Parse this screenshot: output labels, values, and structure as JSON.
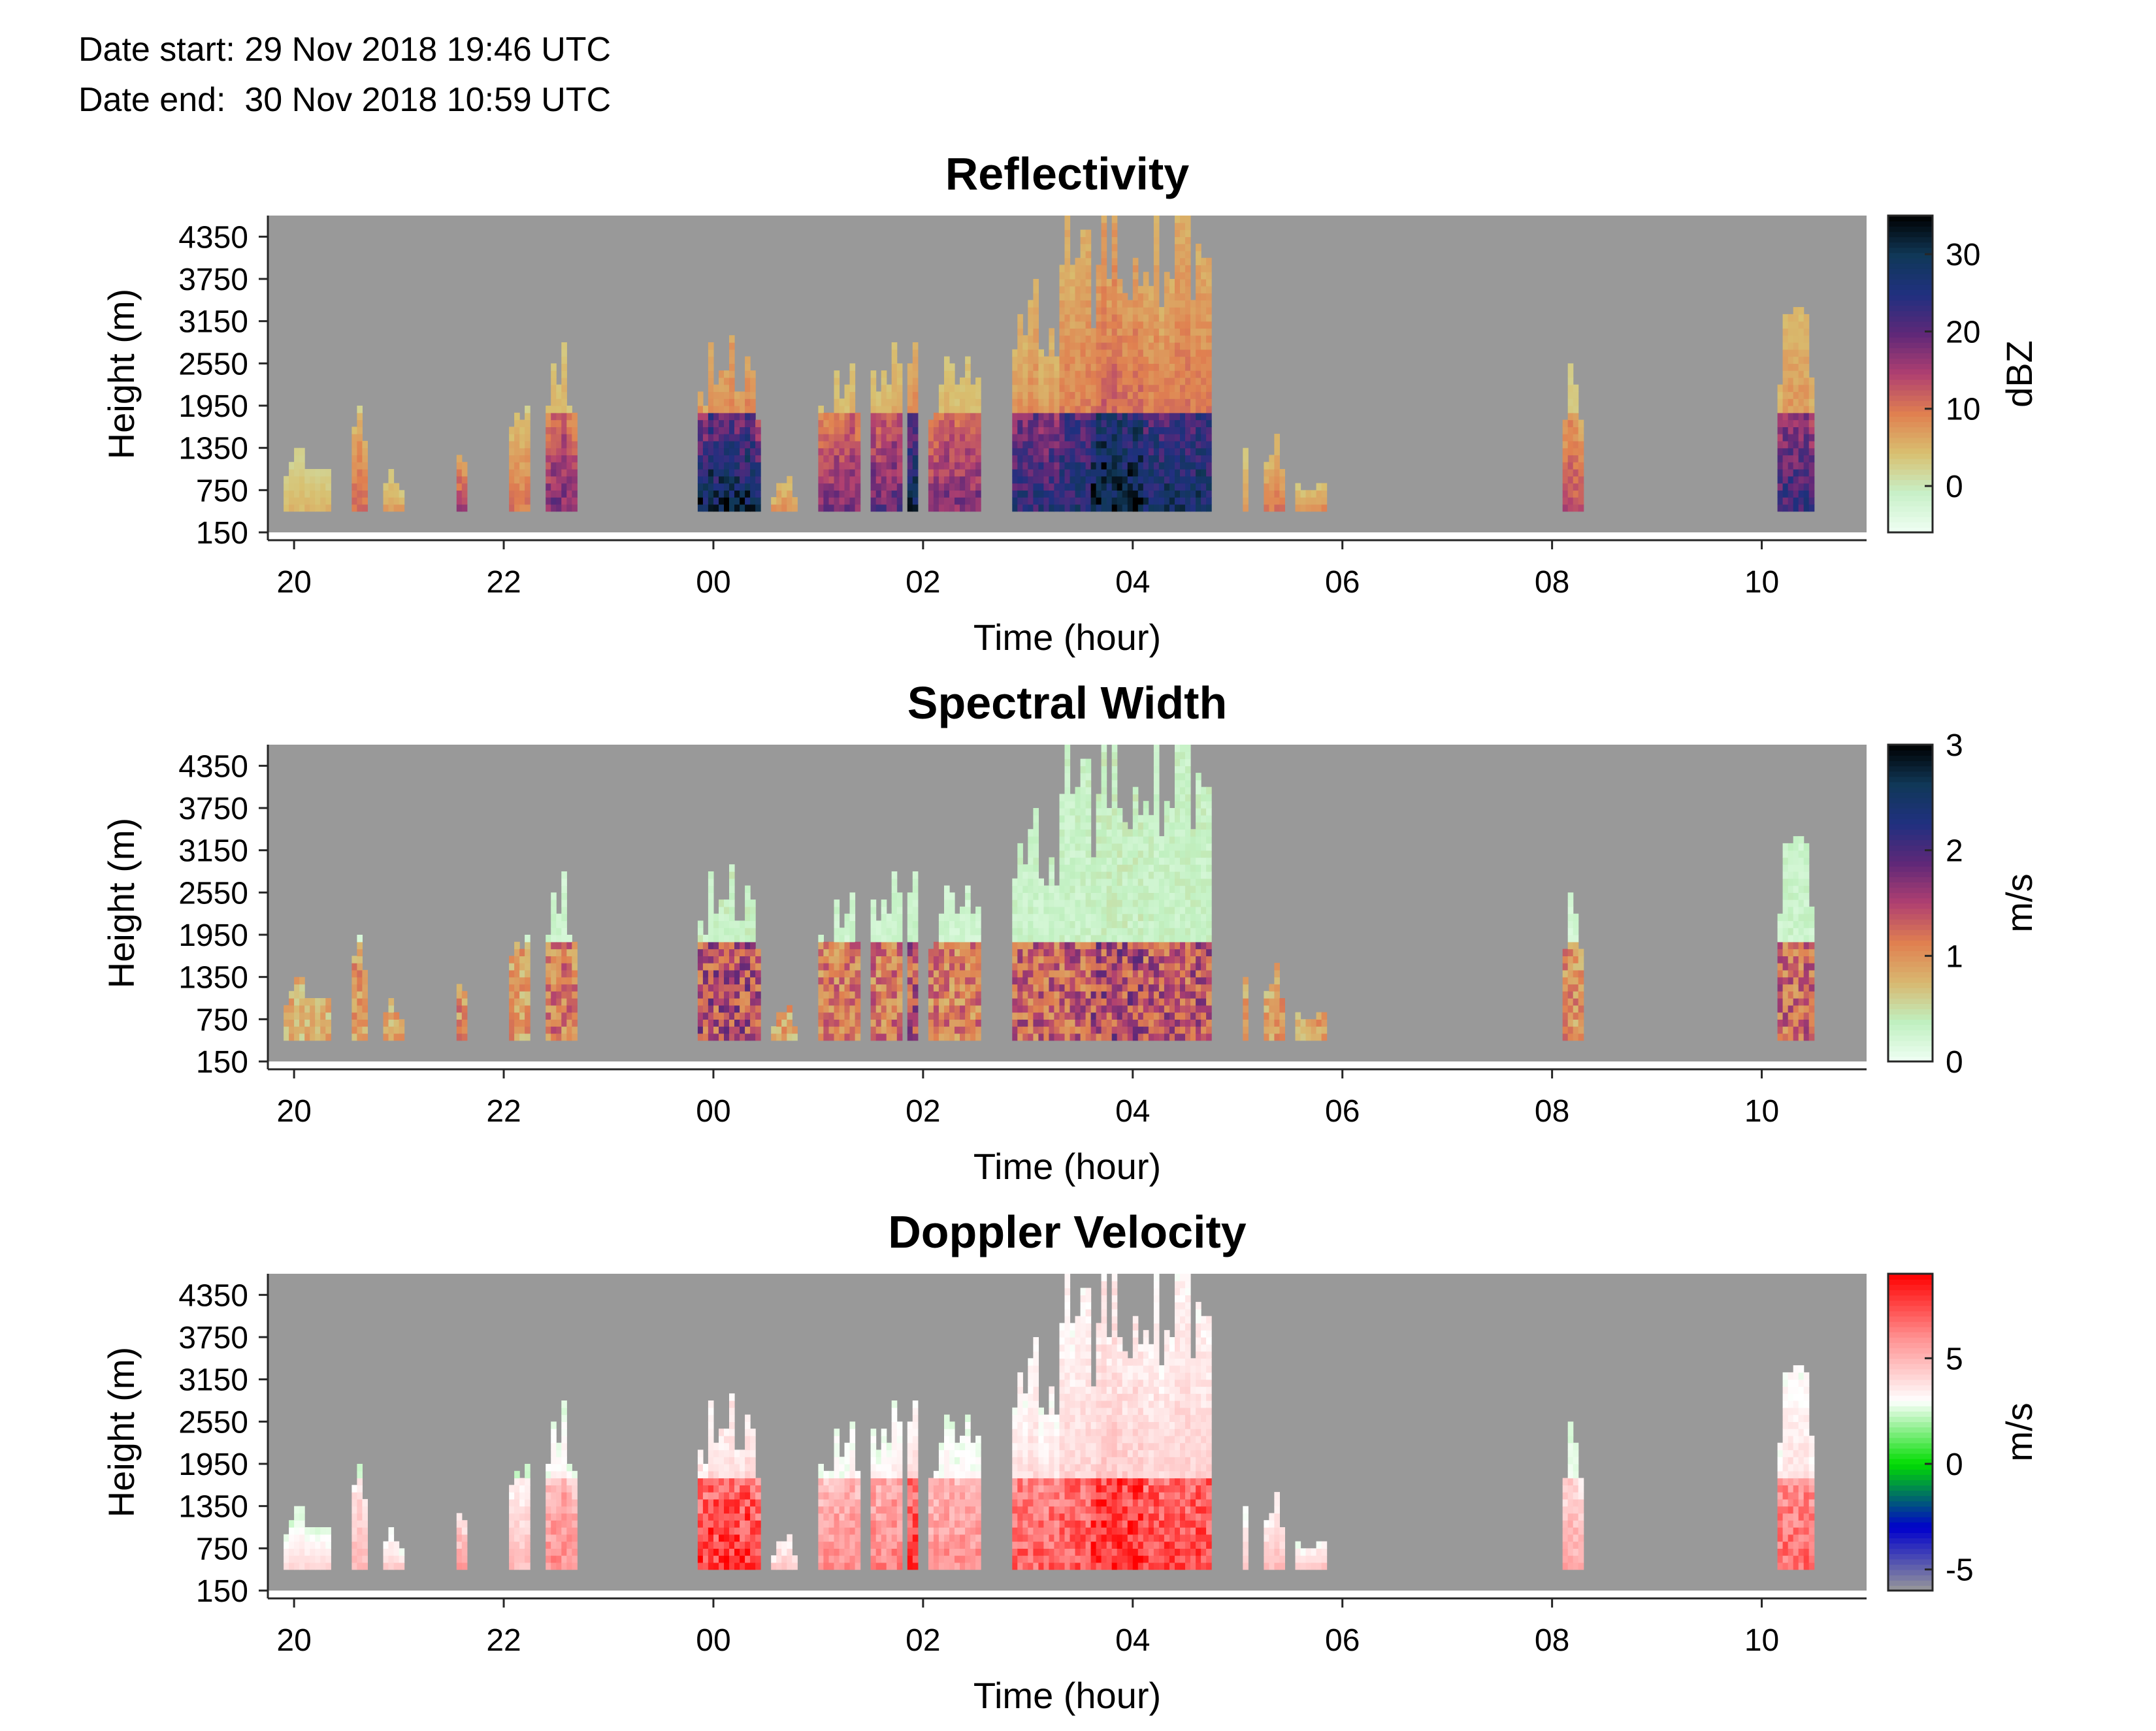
{
  "header": {
    "date_start": "Date start: 29 Nov 2018 19:46 UTC",
    "date_end": "Date end:  30 Nov 2018 10:59 UTC"
  },
  "colors": {
    "background": "#999999",
    "nodata": "#999999"
  },
  "chart_data": [
    {
      "type": "heatmap",
      "title": "Reflectivity",
      "xlabel": "Time (hour)",
      "ylabel": "Height (m)",
      "x_ticks": [
        "20",
        "22",
        "00",
        "02",
        "04",
        "06",
        "08",
        "10"
      ],
      "y_ticks": [
        "150",
        "750",
        "1350",
        "1950",
        "2550",
        "3150",
        "3750",
        "4350"
      ],
      "xlim_hours": [
        19.75,
        35.0
      ],
      "ylim_m": [
        150,
        4650
      ],
      "colorbar": {
        "label": "dBZ",
        "ticks": [
          "0",
          "10",
          "20",
          "30"
        ],
        "range": [
          -6,
          35
        ],
        "stops": [
          "#f0fff4",
          "#c8f0c8",
          "#d8c070",
          "#e08050",
          "#b04070",
          "#602878",
          "#203080",
          "#103858",
          "#000000"
        ]
      },
      "field": "reflectivity"
    },
    {
      "type": "heatmap",
      "title": "Spectral Width",
      "xlabel": "Time (hour)",
      "ylabel": "Height (m)",
      "x_ticks": [
        "20",
        "22",
        "00",
        "02",
        "04",
        "06",
        "08",
        "10"
      ],
      "y_ticks": [
        "150",
        "750",
        "1350",
        "1950",
        "2550",
        "3150",
        "3750",
        "4350"
      ],
      "xlim_hours": [
        19.75,
        35.0
      ],
      "ylim_m": [
        150,
        4650
      ],
      "colorbar": {
        "label": "m/s",
        "ticks": [
          "0",
          "1",
          "2",
          "3"
        ],
        "range": [
          0,
          3
        ],
        "stops": [
          "#f0fff4",
          "#c0f0c0",
          "#d8b870",
          "#e08050",
          "#b04070",
          "#602878",
          "#203080",
          "#103858",
          "#000000"
        ]
      },
      "field": "spectral_width"
    },
    {
      "type": "heatmap",
      "title": "Doppler Velocity",
      "xlabel": "Time (hour)",
      "ylabel": "Height (m)",
      "x_ticks": [
        "20",
        "22",
        "00",
        "02",
        "04",
        "06",
        "08",
        "10"
      ],
      "y_ticks": [
        "150",
        "750",
        "1350",
        "1950",
        "2550",
        "3150",
        "3750",
        "4350"
      ],
      "xlim_hours": [
        19.75,
        35.0
      ],
      "ylim_m": [
        150,
        4650
      ],
      "colorbar": {
        "label": "m/s",
        "ticks": [
          "-5",
          "0",
          "5"
        ],
        "range": [
          -6,
          9
        ],
        "stops": [
          "#999999",
          "#0000cc",
          "#00dd00",
          "#ffffff",
          "#ff9090",
          "#ff0000"
        ]
      },
      "field": "doppler_velocity"
    }
  ]
}
